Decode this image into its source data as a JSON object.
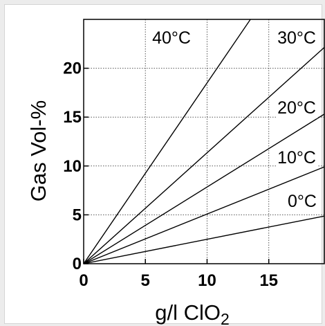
{
  "chart_data": {
    "type": "line",
    "xlabel_main": "g/l ClO",
    "xlabel_sub": "2",
    "ylabel": "Gas Vol-%",
    "xlim": [
      0,
      19.5
    ],
    "ylim": [
      0,
      25
    ],
    "x_ticks": [
      0,
      5,
      10,
      15
    ],
    "y_ticks": [
      0,
      5,
      10,
      15,
      20
    ],
    "grid": true,
    "grid_style": "dotted",
    "series": [
      {
        "name": "40°C",
        "slope": 1.85
      },
      {
        "name": "30°C",
        "slope": 1.135
      },
      {
        "name": "20°C",
        "slope": 0.785
      },
      {
        "name": "10°C",
        "slope": 0.508
      },
      {
        "name": "0°C",
        "slope": 0.25
      }
    ],
    "line_color": "#000000"
  }
}
